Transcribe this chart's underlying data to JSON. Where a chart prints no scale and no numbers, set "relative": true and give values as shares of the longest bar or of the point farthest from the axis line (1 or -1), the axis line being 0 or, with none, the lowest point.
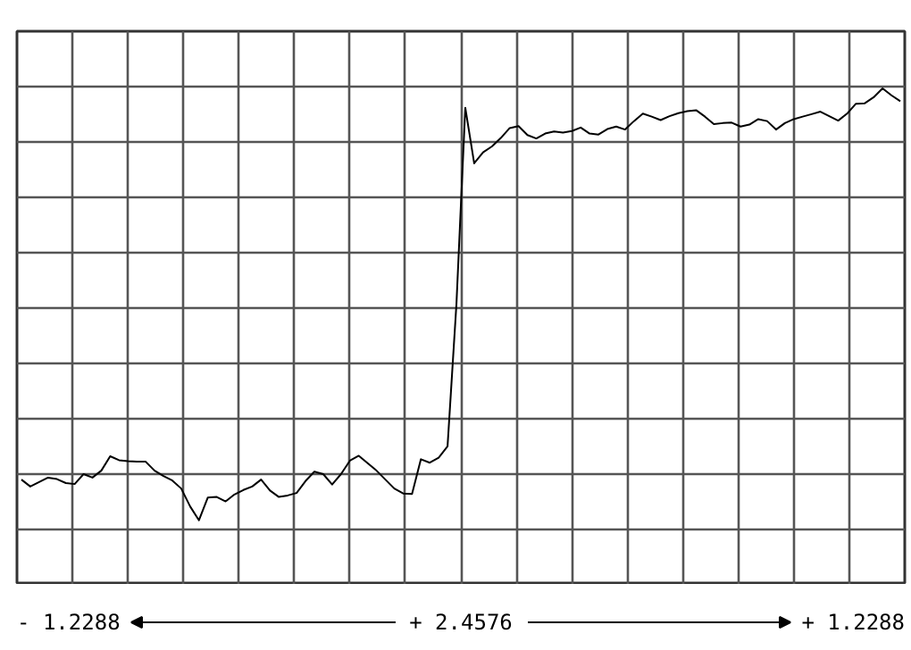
{
  "chart_data": {
    "type": "line",
    "relative": true,
    "categories": [
      null,
      null,
      null,
      null,
      null,
      null,
      null,
      null,
      null,
      null,
      null,
      null,
      null,
      null,
      null,
      null,
      null,
      null,
      null,
      null,
      null,
      null,
      null,
      null,
      null,
      null,
      null,
      null,
      null,
      null,
      null,
      null,
      null,
      null,
      null,
      null,
      null,
      null,
      null,
      null,
      null,
      null,
      null,
      null,
      null,
      null,
      null,
      null,
      null,
      null,
      null,
      null,
      null,
      null,
      null,
      null,
      null,
      null,
      null,
      null,
      null,
      null,
      null,
      null,
      null,
      null,
      null,
      null,
      null,
      null,
      null,
      null,
      null,
      null,
      null,
      null,
      null,
      null,
      null,
      null,
      null,
      null,
      null,
      null,
      null,
      null,
      null,
      null,
      null,
      null,
      null,
      null,
      null,
      null,
      null,
      null,
      null,
      null,
      null,
      null
    ],
    "series": [
      {
        "color": "#000000",
        "values": [
          0.212,
          0.198,
          0.207,
          0.216,
          0.213,
          0.205,
          0.203,
          0.223,
          0.216,
          0.23,
          0.259,
          0.251,
          0.249,
          0.248,
          0.248,
          0.23,
          0.219,
          0.21,
          0.194,
          0.158,
          0.13,
          0.176,
          0.177,
          0.168,
          0.182,
          0.191,
          0.198,
          0.212,
          0.19,
          0.177,
          0.18,
          0.185,
          0.209,
          0.228,
          0.223,
          0.202,
          0.223,
          0.25,
          0.26,
          0.245,
          0.23,
          0.212,
          0.194,
          0.184,
          0.183,
          0.253,
          0.246,
          0.256,
          0.279,
          0.565,
          0.961,
          0.849,
          0.871,
          0.883,
          0.9,
          0.92,
          0.924,
          0.906,
          0.899,
          0.909,
          0.913,
          0.911,
          0.914,
          0.921,
          0.909,
          0.907,
          0.918,
          0.923,
          0.917,
          0.934,
          0.949,
          0.943,
          0.936,
          0.944,
          0.95,
          0.954,
          0.956,
          0.943,
          0.928,
          0.93,
          0.931,
          0.923,
          0.927,
          0.938,
          0.934,
          0.917,
          0.93,
          0.938,
          0.943,
          0.948,
          0.953,
          0.944,
          0.935,
          0.949,
          0.969,
          0.97,
          0.982,
          1.0,
          0.986,
          0.974
        ]
      }
    ],
    "annotations": [
      "- 1.2288",
      "+ 2.4576",
      "+ 1.2288"
    ],
    "grid": true,
    "tick_labels": false,
    "line_style": "solid",
    "marker": "none"
  }
}
